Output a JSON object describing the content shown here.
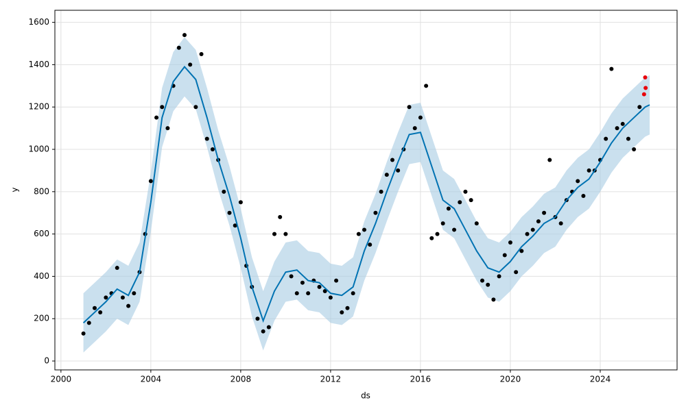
{
  "chart_data": {
    "type": "forecast",
    "x_label": "ds",
    "y_label": "y",
    "xlim": [
      1999.73,
      2027.42
    ],
    "ylim": [
      -42,
      1657
    ],
    "xticks": [
      2000,
      2004,
      2008,
      2012,
      2016,
      2020,
      2024
    ],
    "yticks": [
      0,
      200,
      400,
      600,
      800,
      1000,
      1200,
      1400,
      1600
    ],
    "grid": true,
    "observed": {
      "color": "#000000",
      "x": [
        2001.0,
        2001.25,
        2001.5,
        2001.75,
        2002.0,
        2002.25,
        2002.5,
        2002.75,
        2003.0,
        2003.25,
        2003.5,
        2003.75,
        2004.0,
        2004.25,
        2004.5,
        2004.75,
        2005.0,
        2005.25,
        2005.5,
        2005.75,
        2006.0,
        2006.25,
        2006.5,
        2006.75,
        2007.0,
        2007.25,
        2007.5,
        2007.75,
        2008.0,
        2008.25,
        2008.5,
        2008.75,
        2009.0,
        2009.25,
        2009.5,
        2009.75,
        2010.0,
        2010.25,
        2010.5,
        2010.75,
        2011.0,
        2011.25,
        2011.5,
        2011.75,
        2012.0,
        2012.25,
        2012.5,
        2012.75,
        2013.0,
        2013.25,
        2013.5,
        2013.75,
        2014.0,
        2014.25,
        2014.5,
        2014.75,
        2015.0,
        2015.25,
        2015.5,
        2015.75,
        2016.0,
        2016.25,
        2016.5,
        2016.75,
        2017.0,
        2017.25,
        2017.5,
        2017.75,
        2018.0,
        2018.25,
        2018.5,
        2018.75,
        2019.0,
        2019.25,
        2019.5,
        2019.75,
        2020.0,
        2020.25,
        2020.5,
        2020.75,
        2021.0,
        2021.25,
        2021.5,
        2021.75,
        2022.0,
        2022.25,
        2022.5,
        2022.75,
        2023.0,
        2023.25,
        2023.5,
        2023.75,
        2024.0,
        2024.25,
        2024.5,
        2024.75,
        2025.0,
        2025.25,
        2025.5,
        2025.75
      ],
      "values": [
        130,
        180,
        250,
        230,
        300,
        320,
        440,
        300,
        260,
        320,
        420,
        600,
        850,
        1150,
        1200,
        1100,
        1300,
        1480,
        1540,
        1400,
        1200,
        1450,
        1050,
        1000,
        950,
        800,
        700,
        640,
        750,
        450,
        350,
        200,
        140,
        160,
        600,
        680,
        600,
        400,
        320,
        370,
        320,
        380,
        350,
        330,
        300,
        380,
        230,
        250,
        320,
        600,
        620,
        550,
        700,
        800,
        880,
        950,
        900,
        1000,
        1200,
        1100,
        1150,
        1300,
        580,
        600,
        650,
        720,
        620,
        750,
        800,
        760,
        650,
        380,
        360,
        290,
        400,
        500,
        560,
        420,
        520,
        600,
        620,
        660,
        700,
        950,
        680,
        650,
        760,
        800,
        850,
        780,
        900,
        900,
        950,
        1050,
        1380,
        1100,
        1120,
        1050,
        1000,
        1200
      ]
    },
    "recent": {
      "color": "#e8000b",
      "x": [
        2025.95,
        2026.0,
        2026.02
      ],
      "values": [
        1260,
        1340,
        1290
      ]
    },
    "forecast": {
      "color": "#0072b2",
      "band_color": "#a6cbe3",
      "x": [
        2001.0,
        2001.5,
        2002.0,
        2002.5,
        2003.0,
        2003.5,
        2004.0,
        2004.5,
        2005.0,
        2005.5,
        2006.0,
        2006.5,
        2007.0,
        2007.5,
        2008.0,
        2008.5,
        2009.0,
        2009.5,
        2010.0,
        2010.5,
        2011.0,
        2011.5,
        2012.0,
        2012.5,
        2013.0,
        2013.5,
        2014.0,
        2014.5,
        2015.0,
        2015.5,
        2016.0,
        2016.5,
        2017.0,
        2017.5,
        2018.0,
        2018.5,
        2019.0,
        2019.5,
        2020.0,
        2020.5,
        2021.0,
        2021.5,
        2022.0,
        2022.5,
        2023.0,
        2023.5,
        2024.0,
        2024.5,
        2025.0,
        2025.5,
        2026.0,
        2026.2
      ],
      "values": [
        180,
        230,
        280,
        340,
        310,
        420,
        750,
        1150,
        1320,
        1390,
        1330,
        1150,
        950,
        780,
        580,
        350,
        190,
        330,
        420,
        430,
        380,
        370,
        320,
        310,
        350,
        520,
        650,
        800,
        940,
        1070,
        1080,
        920,
        760,
        720,
        620,
        520,
        440,
        420,
        470,
        540,
        590,
        650,
        680,
        760,
        820,
        860,
        940,
        1030,
        1100,
        1150,
        1200,
        1210
      ],
      "lower": [
        40,
        90,
        140,
        200,
        170,
        280,
        610,
        1010,
        1180,
        1250,
        1190,
        1010,
        810,
        640,
        440,
        210,
        50,
        190,
        280,
        290,
        240,
        230,
        180,
        170,
        210,
        380,
        510,
        660,
        800,
        930,
        940,
        780,
        620,
        580,
        480,
        380,
        300,
        280,
        330,
        400,
        450,
        510,
        540,
        620,
        680,
        720,
        800,
        890,
        960,
        1010,
        1060,
        1070
      ],
      "upper": [
        320,
        370,
        420,
        480,
        450,
        560,
        890,
        1290,
        1460,
        1530,
        1470,
        1290,
        1090,
        920,
        720,
        490,
        330,
        470,
        560,
        570,
        520,
        510,
        460,
        450,
        490,
        660,
        790,
        940,
        1080,
        1210,
        1220,
        1060,
        900,
        860,
        760,
        660,
        580,
        560,
        610,
        680,
        730,
        790,
        820,
        900,
        960,
        1000,
        1080,
        1170,
        1240,
        1290,
        1340,
        1350
      ]
    }
  }
}
